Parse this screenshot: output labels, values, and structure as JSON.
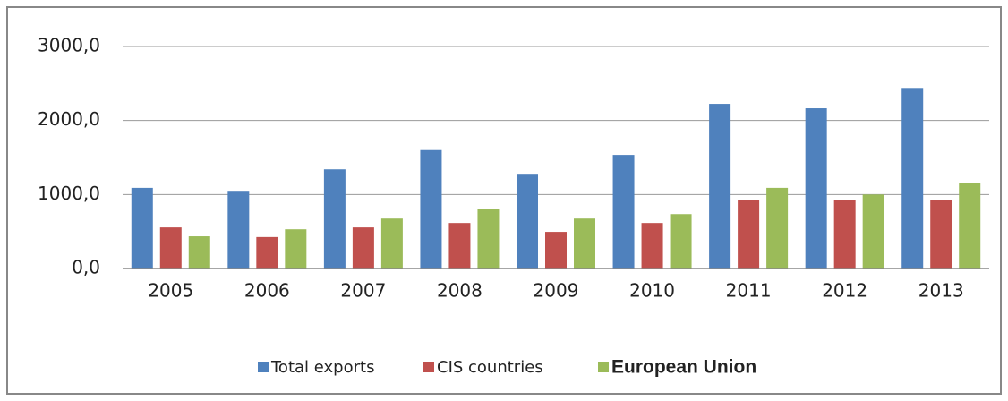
{
  "chart_data": {
    "type": "bar",
    "categories": [
      "2005",
      "2006",
      "2007",
      "2008",
      "2009",
      "2010",
      "2011",
      "2012",
      "2013"
    ],
    "series": [
      {
        "name": "Total exports",
        "color": "#4f81bd",
        "values": [
          1090,
          1050,
          1340,
          1600,
          1280,
          1535,
          2225,
          2165,
          2440
        ]
      },
      {
        "name": "CIS countries",
        "color": "#c0504d",
        "values": [
          555,
          425,
          555,
          615,
          495,
          615,
          930,
          930,
          930
        ]
      },
      {
        "name": "European Union",
        "color": "#9bbb59",
        "values": [
          435,
          530,
          675,
          810,
          675,
          735,
          1090,
          1000,
          1150
        ]
      }
    ],
    "ylim": [
      0,
      3000
    ],
    "yticks": [
      {
        "value": 0,
        "label": "0,0"
      },
      {
        "value": 1000,
        "label": "1000,0"
      },
      {
        "value": 2000,
        "label": "2000,0"
      },
      {
        "value": 3000,
        "label": "3000,0"
      }
    ],
    "grid": true,
    "legend": "bottom"
  }
}
